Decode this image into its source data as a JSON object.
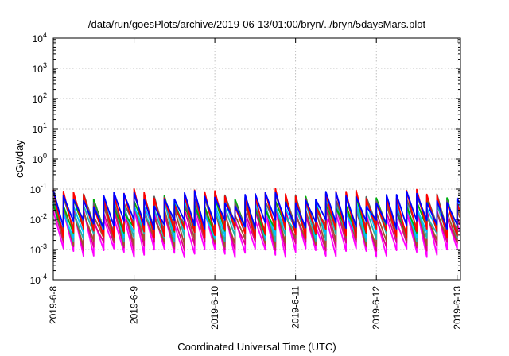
{
  "chart_data": {
    "type": "line",
    "title": "/data/run/goesPlots/archive/2019-06-13/01:00/bryn/../bryn/5daysMars.plot",
    "xlabel": "Coordinated Universal Time (UTC)",
    "ylabel": "cGy/day",
    "y_scale": "log",
    "ylim": [
      0.0001,
      10000
    ],
    "xlim": [
      "2019-06-08 00:00",
      "2019-06-13 01:00"
    ],
    "grid": true,
    "x_ticks": [
      "2019-6-8",
      "2019-6-9",
      "2019-6-10",
      "2019-6-11",
      "2019-6-12",
      "2019-6-13"
    ],
    "y_ticks": [
      {
        "value": 0.0001,
        "base": "10",
        "exp": "-4"
      },
      {
        "value": 0.001,
        "base": "10",
        "exp": "-3"
      },
      {
        "value": 0.01,
        "base": "10",
        "exp": "-2"
      },
      {
        "value": 0.1,
        "base": "10",
        "exp": "-1"
      },
      {
        "value": 1,
        "base": "10",
        "exp": "0"
      },
      {
        "value": 10,
        "base": "10",
        "exp": "1"
      },
      {
        "value": 100,
        "base": "10",
        "exp": "2"
      },
      {
        "value": 1000,
        "base": "10",
        "exp": "3"
      },
      {
        "value": 10000,
        "base": "10",
        "exp": "4"
      }
    ],
    "sawtooth_period_hours": 3,
    "series": [
      {
        "color": "#ff00ff",
        "peak": 0.02,
        "trough": 0.0009
      },
      {
        "color": "#e0008a",
        "peak": 0.025,
        "trough": 0.0015
      },
      {
        "color": "#a0522d",
        "peak": 0.03,
        "trough": 0.002
      },
      {
        "color": "#20b2aa",
        "peak": 0.04,
        "trough": 0.003
      },
      {
        "color": "#00c0ff",
        "peak": 0.045,
        "trough": 0.004
      },
      {
        "color": "#00b000",
        "peak": 0.05,
        "trough": 0.005
      },
      {
        "color": "#606060",
        "peak": 0.06,
        "trough": 0.006
      },
      {
        "color": "#ff0000",
        "peak": 0.08,
        "trough": 0.004
      },
      {
        "color": "#0000ff",
        "peak": 0.07,
        "trough": 0.008
      }
    ]
  }
}
